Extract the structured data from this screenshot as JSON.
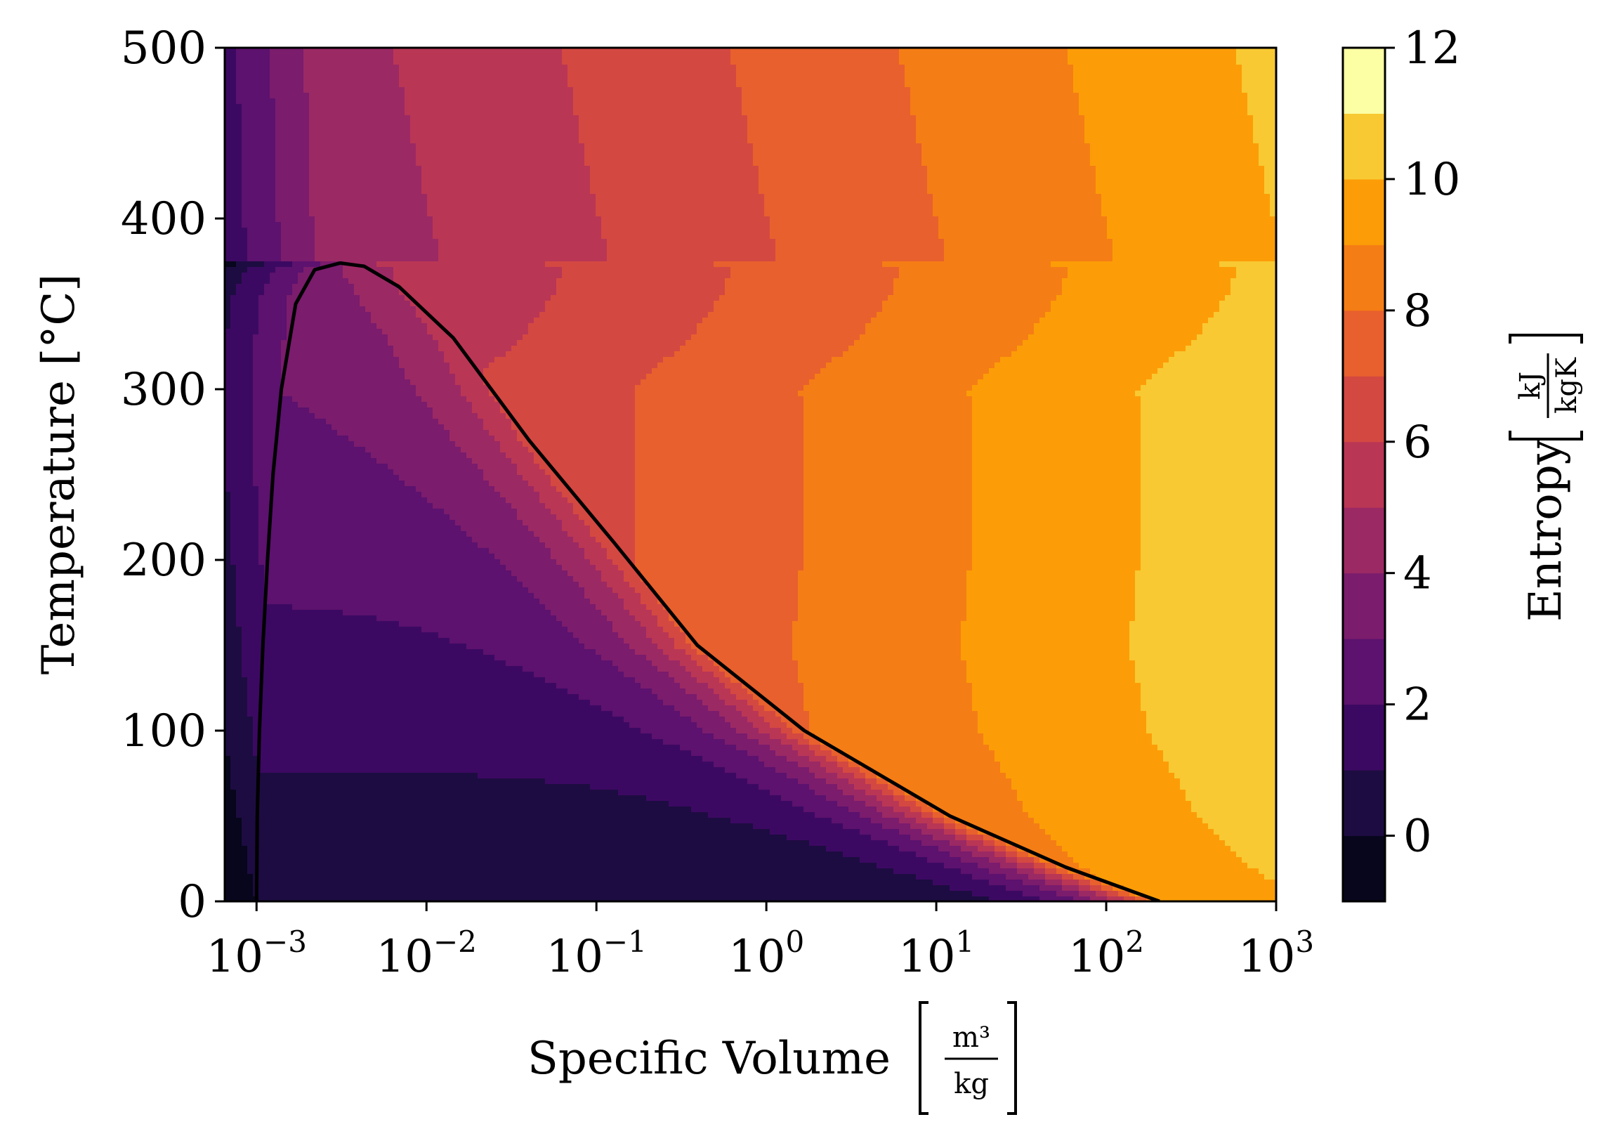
{
  "chart_data": {
    "type": "contour",
    "xlabel": "Specific Volume",
    "xlabel_unit": {
      "numerator": "m³",
      "denominator": "kg"
    },
    "ylabel": "Temperature [°C]",
    "xscale": "log",
    "xlim": [
      0.00065,
      1000
    ],
    "ylim": [
      0,
      500
    ],
    "x_ticks": [
      {
        "value": 0.001,
        "base": "10",
        "exp": "−3"
      },
      {
        "value": 0.01,
        "base": "10",
        "exp": "−2"
      },
      {
        "value": 0.1,
        "base": "10",
        "exp": "−1"
      },
      {
        "value": 1,
        "base": "10",
        "exp": "0"
      },
      {
        "value": 10,
        "base": "10",
        "exp": "1"
      },
      {
        "value": 100,
        "base": "10",
        "exp": "2"
      },
      {
        "value": 1000,
        "base": "10",
        "exp": "3"
      }
    ],
    "y_ticks": [
      0,
      100,
      200,
      300,
      400,
      500
    ],
    "colorbar": {
      "label": "Entropy",
      "unit": {
        "numerator": "kJ",
        "denominator": "kgK"
      },
      "levels": [
        -1,
        0,
        1,
        2,
        3,
        4,
        5,
        6,
        7,
        8,
        9,
        10,
        11,
        12
      ],
      "ticks": [
        0,
        2,
        4,
        6,
        8,
        10,
        12
      ],
      "colors": [
        "#07061c",
        "#1d0c41",
        "#3c0962",
        "#5c126e",
        "#7b1c6d",
        "#9b2964",
        "#ba3655",
        "#d44842",
        "#e8602d",
        "#f57d15",
        "#fc9d07",
        "#f8c932",
        "#fcffa4"
      ]
    },
    "saturation_dome": {
      "series_name": "",
      "critical_point": {
        "v": 0.0031,
        "T": 373.9
      },
      "liquid_line": [
        {
          "v": 0.001,
          "T": 0
        },
        {
          "v": 0.00101,
          "T": 50
        },
        {
          "v": 0.00104,
          "T": 100
        },
        {
          "v": 0.00109,
          "T": 150
        },
        {
          "v": 0.00116,
          "T": 200
        },
        {
          "v": 0.00125,
          "T": 250
        },
        {
          "v": 0.0014,
          "T": 300
        },
        {
          "v": 0.0017,
          "T": 350
        },
        {
          "v": 0.0022,
          "T": 370
        },
        {
          "v": 0.0031,
          "T": 373.9
        }
      ],
      "vapor_line": [
        {
          "v": 0.0031,
          "T": 373.9
        },
        {
          "v": 0.0043,
          "T": 372
        },
        {
          "v": 0.0069,
          "T": 360
        },
        {
          "v": 0.0144,
          "T": 330
        },
        {
          "v": 0.0402,
          "T": 270
        },
        {
          "v": 0.1274,
          "T": 210
        },
        {
          "v": 0.3928,
          "T": 150
        },
        {
          "v": 1.673,
          "T": 100
        },
        {
          "v": 12.03,
          "T": 50
        },
        {
          "v": 57.76,
          "T": 20
        },
        {
          "v": 206,
          "T": 0
        }
      ]
    },
    "isentrope_bands_note": "filled contour bands of entropy in the T-v plane"
  }
}
